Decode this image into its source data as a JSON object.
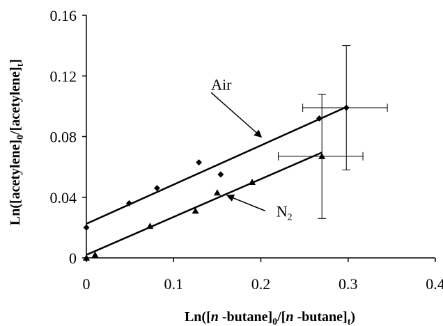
{
  "chart_data": {
    "type": "scatter",
    "xlim": [
      0,
      0.4
    ],
    "ylim": [
      0,
      0.16
    ],
    "xticks": [
      "0",
      "0.1",
      "0.2",
      "0.3",
      "0.4"
    ],
    "xtick_values": [
      0,
      0.1,
      0.2,
      0.3,
      0.4
    ],
    "yticks": [
      "0",
      "0.04",
      "0.08",
      "0.12",
      "0.16"
    ],
    "ytick_values": [
      0,
      0.04,
      0.08,
      0.12,
      0.16
    ],
    "xlabel": {
      "prefix": "Ln([",
      "italic1": "n",
      "mid1": " -butane]",
      "sub1": "0",
      "mid2": "/[",
      "italic2": "n",
      "mid3": " -butane]",
      "sub2": "t",
      "suffix": ")"
    },
    "ylabel": {
      "prefix": "Ln([acetylene]",
      "sub1": "0",
      "mid": "/[acetylene]",
      "sub2": "t",
      "suffix": "]"
    },
    "grid": false,
    "series": [
      {
        "name": "Air",
        "marker": "diamond",
        "points": [
          {
            "x": 0.0,
            "y": 0.02
          },
          {
            "x": 0.049,
            "y": 0.036
          },
          {
            "x": 0.081,
            "y": 0.046
          },
          {
            "x": 0.129,
            "y": 0.063
          },
          {
            "x": 0.154,
            "y": 0.055
          },
          {
            "x": 0.267,
            "y": 0.092
          },
          {
            "x": 0.298,
            "y": 0.099
          }
        ],
        "fit_line": {
          "x": [
            0.0,
            0.298
          ],
          "y": [
            0.0225,
            0.0995
          ]
        },
        "error_bar": {
          "x": 0.298,
          "y": 0.099,
          "x_err": [
            0.05,
            0.047
          ],
          "y_err": [
            0.041,
            0.041
          ]
        }
      },
      {
        "name": "N2",
        "marker": "triangle",
        "points": [
          {
            "x": 0.0,
            "y": 0.0
          },
          {
            "x": 0.01,
            "y": 0.002
          },
          {
            "x": 0.073,
            "y": 0.021
          },
          {
            "x": 0.125,
            "y": 0.031
          },
          {
            "x": 0.15,
            "y": 0.043
          },
          {
            "x": 0.19,
            "y": 0.05
          },
          {
            "x": 0.27,
            "y": 0.067
          }
        ],
        "fit_line": {
          "x": [
            0.0,
            0.27
          ],
          "y": [
            0.002,
            0.0695
          ]
        },
        "error_bar": {
          "x": 0.27,
          "y": 0.067,
          "x_err": [
            0.05,
            0.047
          ],
          "y_err": [
            0.041,
            0.041
          ]
        }
      }
    ],
    "annotations": [
      {
        "text": "Air",
        "series": "Air",
        "arrow_from": {
          "x": 0.143,
          "y": 0.109
        },
        "arrow_to": {
          "x": 0.2,
          "y": 0.08
        }
      },
      {
        "text": "N",
        "subscript": "2",
        "series": "N2",
        "arrow_from": {
          "x": 0.205,
          "y": 0.031
        },
        "arrow_to": {
          "x": 0.162,
          "y": 0.041
        }
      }
    ]
  }
}
